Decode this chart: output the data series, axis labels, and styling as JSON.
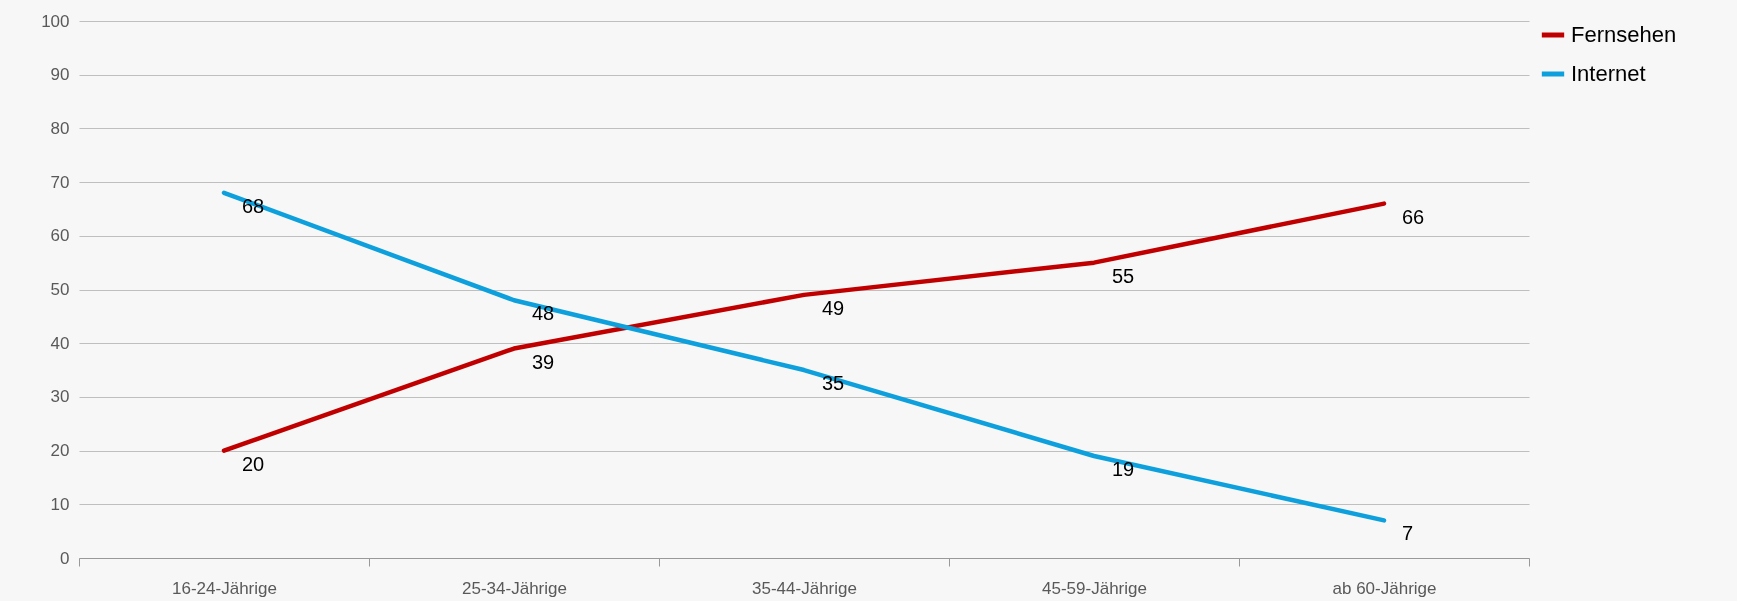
{
  "chart_data": {
    "type": "line",
    "categories": [
      "16-24-Jährige",
      "25-34-Jährige",
      "35-44-Jährige",
      "45-59-Jährige",
      "ab 60-Jährige"
    ],
    "series": [
      {
        "name": "Fernsehen",
        "color": "#c00000",
        "values": [
          20,
          39,
          49,
          55,
          66
        ]
      },
      {
        "name": "Internet",
        "color": "#0ea0dc",
        "values": [
          68,
          48,
          35,
          19,
          7
        ]
      }
    ],
    "ylim": [
      0,
      100
    ],
    "yticks": [
      0,
      10,
      20,
      30,
      40,
      50,
      60,
      70,
      80,
      90,
      100
    ],
    "grid": "y",
    "legend": "top right",
    "data_labels": true,
    "marker": "none",
    "line_style": "solid"
  }
}
